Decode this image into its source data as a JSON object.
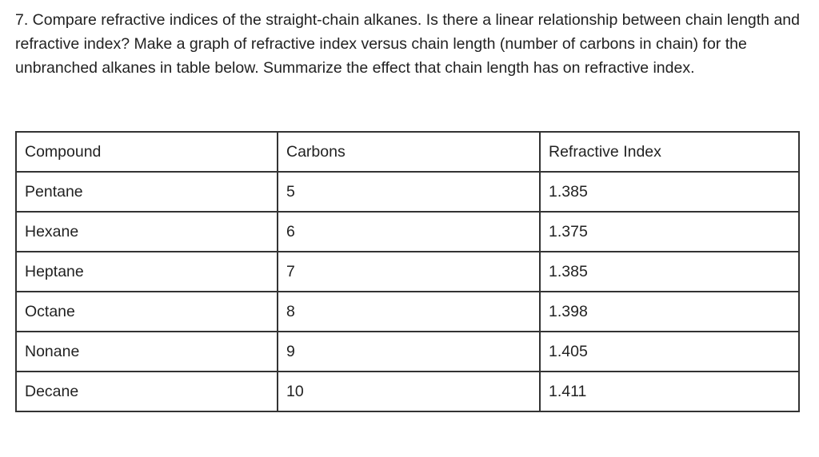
{
  "question": "7. Compare refractive indices of the straight-chain alkanes. Is there a linear relationship between chain length and refractive index? Make a graph of refractive index versus chain length (number of carbons in chain) for the unbranched alkanes in table below. Summarize the effect that chain length has on refractive index.",
  "table": {
    "headers": [
      "Compound",
      "Carbons",
      "Refractive Index"
    ],
    "rows": [
      [
        "Pentane",
        "5",
        "1.385"
      ],
      [
        "Hexane",
        "6",
        "1.375"
      ],
      [
        "Heptane",
        "7",
        "1.385"
      ],
      [
        "Octane",
        "8",
        "1.398"
      ],
      [
        "Nonane",
        "9",
        "1.405"
      ],
      [
        "Decane",
        "10",
        "1.411"
      ]
    ]
  }
}
